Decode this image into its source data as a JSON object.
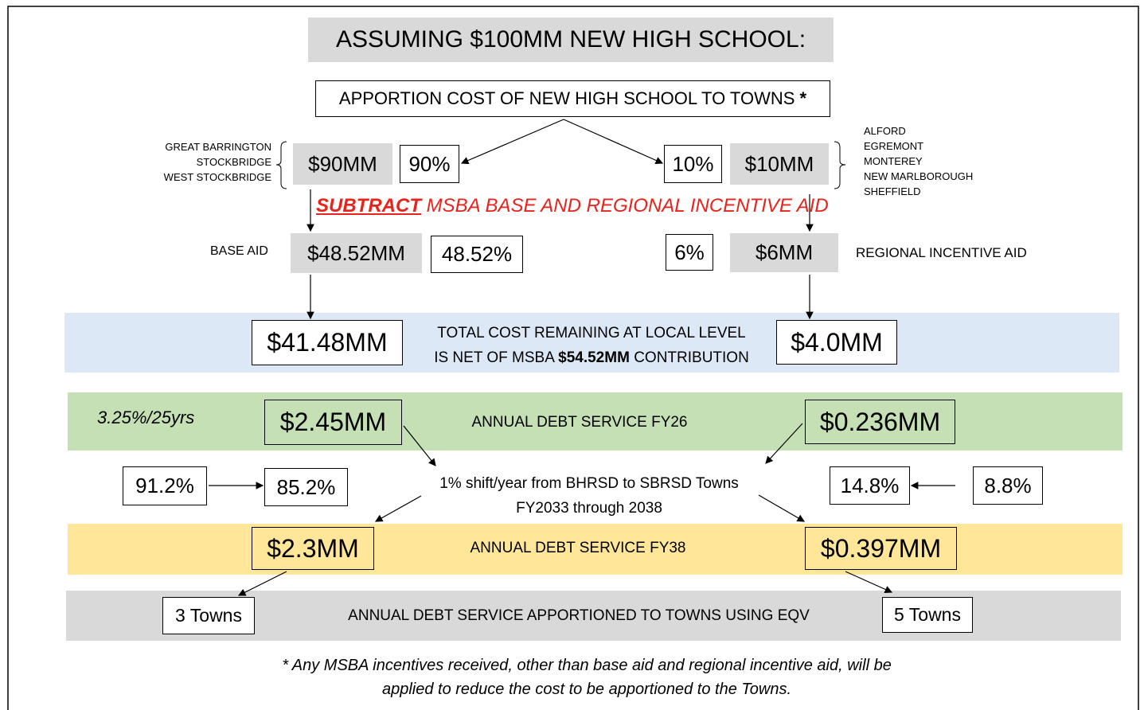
{
  "title": "ASSUMING $100MM NEW HIGH SCHOOL:",
  "apportion": {
    "text": "APPORTION COST OF NEW HIGH SCHOOL TO TOWNS",
    "mark": "*"
  },
  "subtract": {
    "emphasis": "SUBTRACT",
    "text": "MSBA BASE AND REGIONAL INCENTIVE AID"
  },
  "left": {
    "towns": [
      "GREAT BARRINGTON",
      "STOCKBRIDGE",
      "WEST STOCKBRIDGE"
    ],
    "cost": "$90MM",
    "share": "90%",
    "aid_label": "BASE AID",
    "aid": "$48.52MM",
    "aid_pct": "48.52%",
    "remaining": "$41.48MM",
    "debt_fy26": "$2.45MM",
    "share_start": "91.2%",
    "share_end": "85.2%",
    "debt_fy38": "$2.3MM",
    "towns_count": "3 Towns"
  },
  "right": {
    "towns": [
      "ALFORD",
      "EGREMONT",
      "MONTEREY",
      "NEW MARLBOROUGH",
      "SHEFFIELD"
    ],
    "cost": "$10MM",
    "share": "10%",
    "aid_label": "REGIONAL INCENTIVE AID",
    "aid": "$6MM",
    "aid_pct": "6%",
    "remaining": "$4.0MM",
    "debt_fy26": "$0.236MM",
    "share_start": "8.8%",
    "share_end": "14.8%",
    "debt_fy38": "$0.397MM",
    "towns_count": "5 Towns"
  },
  "remaining": {
    "line1": "TOTAL COST REMAINING AT LOCAL LEVEL",
    "line2_before": "IS NET OF MSBA",
    "line2_amount": "$54.52MM",
    "line2_after": "CONTRIBUTION"
  },
  "rate": "3.25%/25yrs",
  "debt_fy26_label": "ANNUAL DEBT SERVICE FY26",
  "shift": {
    "line1": "1% shift/year from BHRSD to SBRSD Towns",
    "line2": "FY2033 through 2038"
  },
  "debt_fy38_label": "ANNUAL DEBT SERVICE FY38",
  "apportioned_label": "ANNUAL DEBT SERVICE APPORTIONED TO TOWNS USING EQV",
  "footnote": {
    "line1": "* Any MSBA incentives received, other than base aid and regional incentive aid, will be",
    "line2": "applied to reduce the cost to be apportioned to the Towns."
  }
}
